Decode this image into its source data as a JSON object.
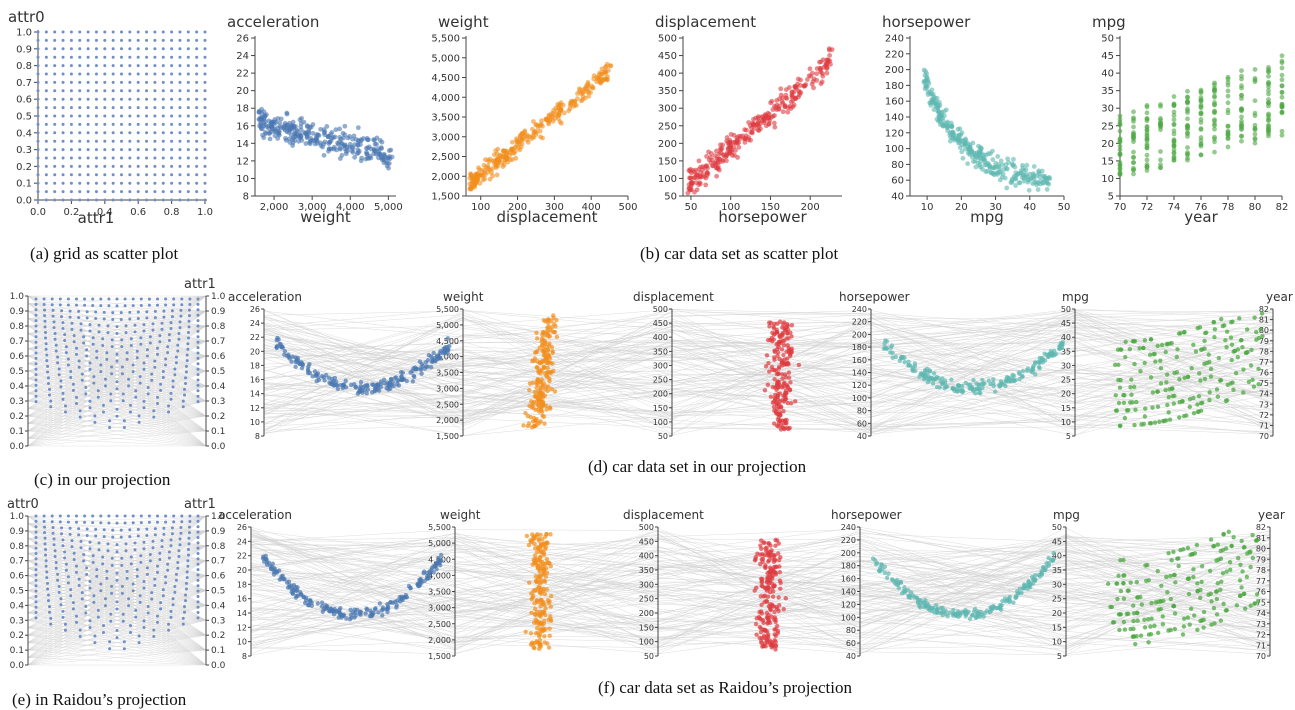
{
  "captions": {
    "a": "(a) grid as scatter plot",
    "b": "(b) car data set as scatter plot",
    "c": "(c) in our projection",
    "d": "(d) car data set in our projection",
    "e": "(e) in Raidou’s projection",
    "f": "(f) car data set as Raidou’s projection"
  },
  "colors": {
    "grid": "#6f8fc6",
    "acceleration": "#4a77b0",
    "weight": "#f28e1c",
    "displacement": "#de3b3f",
    "horsepower": "#5eb7b0",
    "mpg": "#4ea843",
    "line": "#cfcfcf",
    "axis": "#444444"
  },
  "chart_data": [
    {
      "id": "a",
      "type": "scatter",
      "title": "",
      "ylabel": "attr0",
      "xlabel": "attr1",
      "xlim": [
        0,
        1
      ],
      "ylim": [
        0,
        1
      ],
      "xticks": [
        "0.0",
        "0.2",
        "0.4",
        "0.6",
        "0.8",
        "1.0"
      ],
      "yticks": [
        "0.0",
        "0.1",
        "0.2",
        "0.3",
        "0.4",
        "0.5",
        "0.6",
        "0.7",
        "0.8",
        "0.9",
        "1.0"
      ],
      "grid_points": {
        "x_steps": 20,
        "y_steps": 20
      }
    },
    {
      "id": "b1",
      "type": "scatter",
      "title": "acceleration",
      "xlabel": "weight",
      "xlim": [
        1500,
        5200
      ],
      "ylim": [
        8,
        26
      ],
      "xticks": [
        "2,000",
        "3,000",
        "4,000",
        "5,000"
      ],
      "xtick_values": [
        2000,
        3000,
        4000,
        5000
      ],
      "yticks": [
        "8",
        "10",
        "12",
        "14",
        "16",
        "18",
        "20",
        "22",
        "24",
        "26"
      ],
      "ytick_values": [
        8,
        10,
        12,
        14,
        16,
        18,
        20,
        22,
        24,
        26
      ],
      "trend": {
        "x_range": [
          1600,
          5100
        ],
        "y_start": 16.5,
        "y_end": 12.5,
        "spread": 1.6
      }
    },
    {
      "id": "b2",
      "type": "scatter",
      "title": "weight",
      "xlabel": "displacement",
      "xlim": [
        60,
        500
      ],
      "ylim": [
        1500,
        5500
      ],
      "xticks": [
        "100",
        "200",
        "300",
        "400",
        "500"
      ],
      "xtick_values": [
        100,
        200,
        300,
        400,
        500
      ],
      "yticks": [
        "1,500",
        "2,000",
        "2,500",
        "3,000",
        "3,500",
        "4,000",
        "4,500",
        "5,000",
        "5,500"
      ],
      "ytick_values": [
        1500,
        2000,
        2500,
        3000,
        3500,
        4000,
        4500,
        5000,
        5500
      ],
      "trend": {
        "x_range": [
          70,
          455
        ],
        "y_start": 1800,
        "y_end": 4700,
        "spread": 250
      }
    },
    {
      "id": "b3",
      "type": "scatter",
      "title": "displacement",
      "xlabel": "horsepower",
      "xlim": [
        40,
        240
      ],
      "ylim": [
        50,
        500
      ],
      "xticks": [
        "50",
        "100",
        "150",
        "200"
      ],
      "xtick_values": [
        50,
        100,
        150,
        200
      ],
      "yticks": [
        "50",
        "100",
        "150",
        "200",
        "250",
        "300",
        "350",
        "400",
        "450",
        "500"
      ],
      "ytick_values": [
        50,
        100,
        150,
        200,
        250,
        300,
        350,
        400,
        450,
        500
      ],
      "trend": {
        "x_range": [
          46,
          230
        ],
        "y_start": 80,
        "y_end": 440,
        "spread": 35
      }
    },
    {
      "id": "b4",
      "type": "scatter",
      "title": "horsepower",
      "xlabel": "mpg",
      "xlim": [
        5,
        50
      ],
      "ylim": [
        40,
        240
      ],
      "xticks": [
        "10",
        "20",
        "30",
        "40",
        "50"
      ],
      "xtick_values": [
        10,
        20,
        30,
        40,
        50
      ],
      "yticks": [
        "40",
        "60",
        "80",
        "100",
        "120",
        "140",
        "160",
        "180",
        "200",
        "220",
        "240"
      ],
      "ytick_values": [
        40,
        60,
        80,
        100,
        120,
        140,
        160,
        180,
        200,
        220,
        240
      ],
      "trend": {
        "x_range": [
          9,
          46
        ],
        "curve": "decay",
        "y_start": 190,
        "y_end": 55,
        "spread": 14
      }
    },
    {
      "id": "b5",
      "type": "scatter",
      "title": "mpg",
      "xlabel": "year",
      "xlim": [
        70,
        82
      ],
      "ylim": [
        5,
        50
      ],
      "xticks": [
        "70",
        "72",
        "74",
        "76",
        "78",
        "80",
        "82"
      ],
      "xtick_values": [
        70,
        72,
        74,
        76,
        78,
        80,
        82
      ],
      "yticks": [
        "5",
        "10",
        "15",
        "20",
        "25",
        "30",
        "35",
        "40",
        "45",
        "50"
      ],
      "ytick_values": [
        5,
        10,
        15,
        20,
        25,
        30,
        35,
        40,
        45,
        50
      ],
      "trend": {
        "x_discrete": [
          70,
          71,
          72,
          73,
          74,
          75,
          76,
          77,
          78,
          79,
          80,
          81,
          82
        ],
        "y_low_start": 10,
        "y_low_end": 22,
        "y_high_start": 28,
        "y_high_end": 45
      }
    },
    {
      "id": "c",
      "type": "parallel",
      "axes": [
        "attr0",
        "attr1"
      ],
      "ticks": [
        "0.0",
        "0.1",
        "0.2",
        "0.3",
        "0.4",
        "0.5",
        "0.6",
        "0.7",
        "0.8",
        "0.9",
        "1.0"
      ],
      "pattern": "u-shape-grid"
    },
    {
      "id": "d",
      "type": "parallel",
      "axes": [
        "acceleration",
        "weight",
        "displacement",
        "horsepower",
        "mpg",
        "year"
      ],
      "axis_ticks": [
        [
          "8",
          "10",
          "12",
          "14",
          "16",
          "18",
          "20",
          "22",
          "24",
          "26"
        ],
        [
          "1,500",
          "2,000",
          "2,500",
          "3,000",
          "3,500",
          "4,000",
          "4,500",
          "5,000",
          "5,500"
        ],
        [
          "50",
          "100",
          "150",
          "200",
          "250",
          "300",
          "350",
          "400",
          "450",
          "500"
        ],
        [
          "40",
          "60",
          "80",
          "100",
          "120",
          "140",
          "160",
          "180",
          "200",
          "220",
          "240"
        ],
        [
          "5",
          "10",
          "15",
          "20",
          "25",
          "30",
          "35",
          "40",
          "45",
          "50"
        ],
        [
          "70",
          "71",
          "72",
          "73",
          "74",
          "75",
          "76",
          "77",
          "78",
          "79",
          "80",
          "81",
          "82"
        ]
      ]
    },
    {
      "id": "e",
      "type": "parallel",
      "axes": [
        "attr0",
        "attr1"
      ],
      "ticks": [
        "0.0",
        "0.1",
        "0.2",
        "0.3",
        "0.4",
        "0.5",
        "0.6",
        "0.7",
        "0.8",
        "0.9",
        "1.0"
      ],
      "pattern": "v-shape-grid"
    },
    {
      "id": "f",
      "type": "parallel",
      "axes": [
        "acceleration",
        "weight",
        "displacement",
        "horsepower",
        "mpg",
        "year"
      ],
      "axis_ticks": [
        [
          "8",
          "10",
          "12",
          "14",
          "16",
          "18",
          "20",
          "22",
          "24",
          "26"
        ],
        [
          "1,500",
          "2,000",
          "2,500",
          "3,000",
          "3,500",
          "4,000",
          "4,500",
          "5,000",
          "5,500"
        ],
        [
          "50",
          "100",
          "150",
          "200",
          "250",
          "300",
          "350",
          "400",
          "450",
          "500"
        ],
        [
          "40",
          "60",
          "80",
          "100",
          "120",
          "140",
          "160",
          "180",
          "200",
          "220",
          "240"
        ],
        [
          "5",
          "10",
          "15",
          "20",
          "25",
          "30",
          "35",
          "40",
          "45",
          "50"
        ],
        [
          "70",
          "71",
          "72",
          "73",
          "74",
          "75",
          "76",
          "77",
          "78",
          "79",
          "80",
          "81",
          "82"
        ]
      ]
    }
  ]
}
